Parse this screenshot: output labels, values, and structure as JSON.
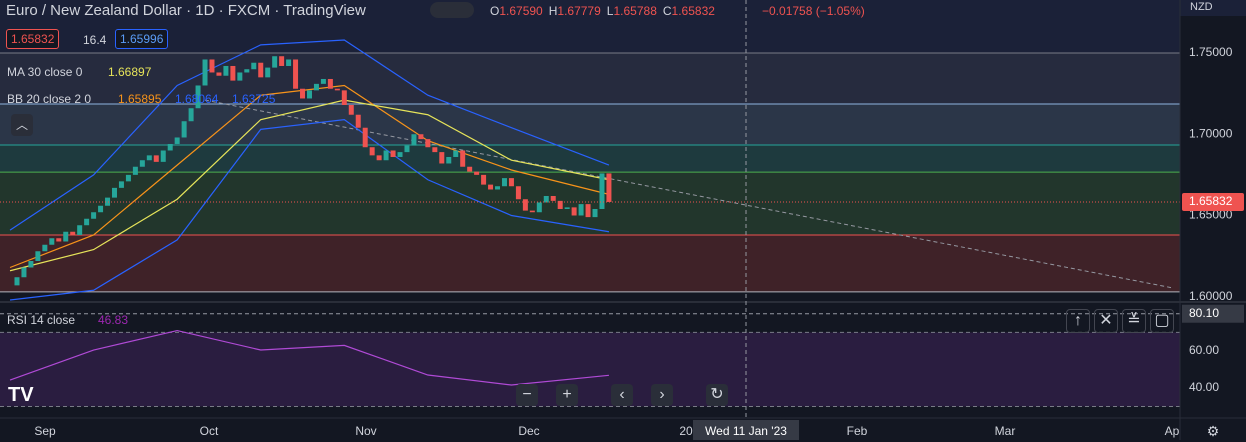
{
  "header": {
    "title": "Euro / New Zealand Dollar · 1D · FXCM · TradingView",
    "ohlc": [
      {
        "key": "O",
        "value": "1.67590"
      },
      {
        "key": "H",
        "value": "1.67779"
      },
      {
        "key": "L",
        "value": "1.65788"
      },
      {
        "key": "C",
        "value": "1.65832"
      }
    ],
    "change": "−0.01758 (−1.05%)",
    "sell": "1.65832",
    "spread": "16.4",
    "buy": "1.65996",
    "ma_label": "MA 30 close 0",
    "ma_value": "1.66897",
    "bb_label": "BB 20 close 2 0",
    "bb_basis": "1.65895",
    "bb_upper": "1.68064",
    "bb_lower": "1.63725",
    "rsi_label": "RSI 14 close",
    "rsi_value": "46.83"
  },
  "chart_data": {
    "type": "candlestick",
    "currency": "NZD",
    "close": [
      1.607,
      1.612,
      1.618,
      1.622,
      1.628,
      1.632,
      1.636,
      1.634,
      1.64,
      1.638,
      1.644,
      1.648,
      1.652,
      1.656,
      1.661,
      1.667,
      1.671,
      1.675,
      1.68,
      1.684,
      1.687,
      1.683,
      1.69,
      1.694,
      1.698,
      1.708,
      1.716,
      1.73,
      1.746,
      1.738,
      1.736,
      1.742,
      1.733,
      1.738,
      1.74,
      1.744,
      1.735,
      1.741,
      1.748,
      1.742,
      1.746,
      1.728,
      1.722,
      1.727,
      1.731,
      1.734,
      1.728,
      1.727,
      1.718,
      1.712,
      1.704,
      1.692,
      1.687,
      1.684,
      1.69,
      1.686,
      1.689,
      1.693,
      1.7,
      1.697,
      1.692,
      1.689,
      1.682,
      1.686,
      1.69,
      1.68,
      1.677,
      1.675,
      1.669,
      1.666,
      1.668,
      1.673,
      1.668,
      1.66,
      1.653,
      1.652,
      1.658,
      1.662,
      1.659,
      1.654,
      1.655,
      1.65,
      1.657,
      1.649,
      1.654,
      1.6759,
      1.65832
    ],
    "up_color": "#26a69a",
    "down_color": "#ef5350",
    "xlim": [
      -1.44,
      168
    ],
    "ylim": [
      1.598,
      1.7826
    ],
    "yticks": [
      {
        "value": 1.75,
        "label": "1.75000"
      },
      {
        "value": 1.7,
        "label": "1.70000"
      },
      {
        "value": 1.65,
        "label": "1.65000"
      },
      {
        "value": 1.6,
        "label": "1.60000"
      }
    ],
    "levels": [
      1.75,
      1.7186,
      1.6934,
      1.6767,
      1.638,
      1.603
    ],
    "last_price": {
      "value": 1.65832,
      "label": "1.65832"
    },
    "trendline": {
      "x": [
        28,
        167
      ],
      "y": [
        1.721,
        1.6054
      ]
    },
    "indicator_x": [
      0,
      12,
      24,
      36,
      48,
      60,
      72,
      86
    ],
    "ma30": {
      "color": "#e6e45a",
      "values": [
        1.616,
        1.629,
        1.66,
        1.709,
        1.721,
        1.712,
        1.684,
        1.672
      ]
    },
    "bb": {
      "basis_color": "#f7931a",
      "band_color": "#2962ff",
      "basis": [
        1.618,
        1.638,
        1.681,
        1.724,
        1.73,
        1.696,
        1.678,
        1.663
      ],
      "upper": [
        1.641,
        1.675,
        1.73,
        1.755,
        1.758,
        1.724,
        1.704,
        1.681
      ],
      "lower": [
        1.598,
        1.604,
        1.635,
        1.703,
        1.709,
        1.672,
        1.65,
        1.64
      ]
    },
    "rsi": {
      "color": "#b04ad6",
      "values": [
        44.3,
        60.5,
        71,
        60.5,
        63,
        47,
        41.6,
        46.83
      ],
      "ylim": [
        25.4,
        85.9
      ],
      "yticks": [
        {
          "value": 60,
          "label": "60.00"
        },
        {
          "value": 40,
          "label": "40.00"
        }
      ],
      "bands": [
        70,
        30
      ],
      "crosshair": {
        "value": 80.1,
        "label": "80.10"
      }
    },
    "time_labels": [
      "Sep",
      "Oct",
      "Nov",
      "Dec",
      "20",
      "Feb",
      "Mar",
      "Ap"
    ],
    "crosshair_time": "Wed 11 Jan '23"
  }
}
